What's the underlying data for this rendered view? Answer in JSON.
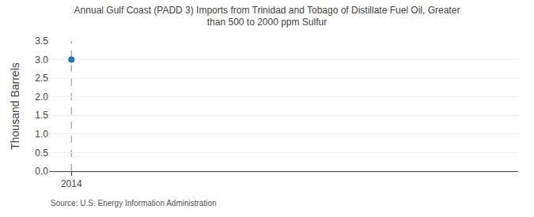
{
  "chart_data": {
    "type": "scatter",
    "title": "Annual Gulf Coast (PADD 3) Imports from Trinidad and Tobago of Distillate Fuel Oil, Greater\nthan 500 to 2000 ppm Sulfur",
    "ylabel": "Thousand Barrels",
    "annotations": [
      {
        "text": "Source: U.S. Energy Information Administration"
      }
    ],
    "x": [
      2014
    ],
    "values": [
      3.0
    ],
    "marker": "circle",
    "xlim": [
      2013.5,
      2024.0
    ],
    "xticks": [
      2014
    ],
    "ylim": [
      0.0,
      3.5
    ],
    "yticks": [
      {
        "value": 0.0,
        "label": "0.0"
      },
      0.5,
      {
        "value": 1.0,
        "label": "1.0"
      },
      1.5,
      {
        "value": 2.0,
        "label": "2.0"
      },
      2.5,
      {
        "value": 3.0,
        "label": "3.0"
      },
      3.5
    ],
    "reference_lines": [
      {
        "x": 2014,
        "line_style": "dashed"
      }
    ],
    "grid": "y"
  }
}
